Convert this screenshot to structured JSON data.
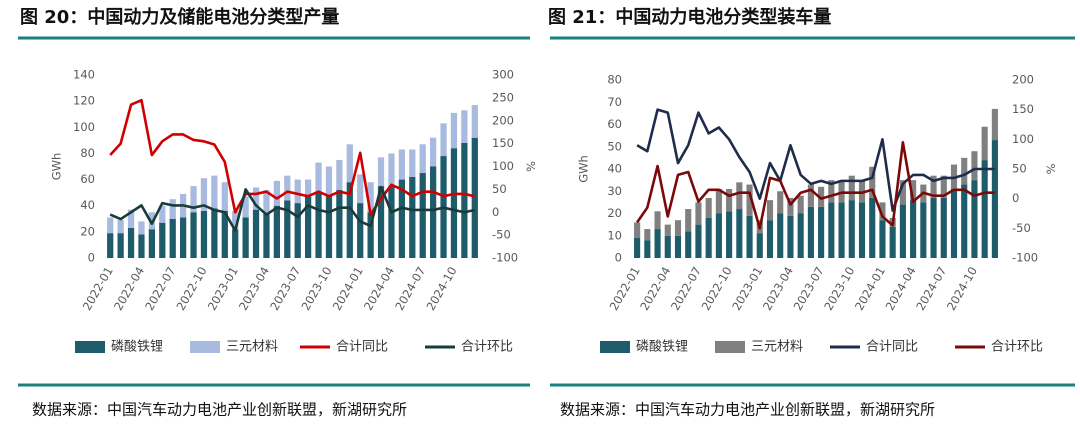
{
  "chart_data": [
    {
      "type": "bar",
      "title": "图 20：中国动力及储能电池分类型产量",
      "source": "数据来源：中国汽车动力电池产业创新联盟，新湖研究所",
      "y_label": "GWh",
      "y2_label": "%",
      "categories": [
        "2022-01",
        null,
        null,
        "2022-04",
        null,
        null,
        "2022-07",
        null,
        null,
        "2022-10",
        null,
        null,
        "2023-01",
        null,
        null,
        "2023-04",
        null,
        null,
        "2023-07",
        null,
        null,
        "2023-10",
        null,
        null,
        "2024-01",
        null,
        null,
        "2024-04",
        null,
        null,
        "2024-07",
        null,
        null,
        "2024-10",
        null,
        null
      ],
      "ylim": [
        0,
        140
      ],
      "yticks": [
        0,
        20,
        40,
        60,
        80,
        100,
        120,
        140
      ],
      "y2lim": [
        -100,
        300
      ],
      "y2ticks": [
        -100,
        -50,
        0,
        50,
        100,
        150,
        200,
        250,
        300
      ],
      "series": [
        {
          "name": "磷酸铁锂",
          "type": "bar",
          "color": "#1f5c6b",
          "values": [
            19,
            19,
            23,
            18,
            22,
            27,
            30,
            31,
            35,
            36,
            38,
            36,
            22,
            31,
            37,
            34,
            40,
            44,
            42,
            47,
            50,
            48,
            52,
            58,
            42,
            35,
            55,
            55,
            60,
            62,
            65,
            70,
            78,
            84,
            88,
            92
          ]
        },
        {
          "name": "三元材料",
          "type": "bar",
          "color": "#a8badf",
          "values": [
            12,
            10,
            14,
            10,
            13,
            13,
            15,
            18,
            20,
            25,
            25,
            22,
            14,
            16,
            17,
            18,
            19,
            19,
            18,
            13,
            23,
            22,
            23,
            29,
            22,
            23,
            22,
            25,
            23,
            21,
            22,
            22,
            25,
            27,
            25,
            25
          ]
        },
        {
          "name": "合计同比",
          "type": "line",
          "axis": "y2",
          "color": "#d00000",
          "values": [
            125,
            150,
            235,
            245,
            125,
            155,
            170,
            170,
            158,
            155,
            148,
            110,
            0,
            40,
            40,
            45,
            30,
            45,
            40,
            35,
            45,
            35,
            45,
            40,
            130,
            -5,
            30,
            60,
            50,
            35,
            45,
            45,
            35,
            40,
            40,
            35
          ]
        },
        {
          "name": "合计环比",
          "type": "line",
          "axis": "y2",
          "color": "#1b3b3b",
          "values": [
            -5,
            -15,
            0,
            15,
            -25,
            20,
            15,
            15,
            10,
            15,
            5,
            0,
            -40,
            50,
            15,
            -5,
            10,
            5,
            -10,
            15,
            5,
            0,
            10,
            10,
            -20,
            -30,
            55,
            0,
            10,
            5,
            5,
            5,
            10,
            5,
            0,
            5
          ]
        }
      ]
    },
    {
      "type": "bar",
      "title": "图 21：中国动力电池分类型装车量",
      "source": "数据来源：中国汽车动力电池产业创新联盟，新湖研究所",
      "y_label": "GWh",
      "y2_label": "%",
      "categories": [
        "2022-01",
        null,
        null,
        "2022-04",
        null,
        null,
        "2022-07",
        null,
        null,
        "2022-10",
        null,
        null,
        "2023-01",
        null,
        null,
        "2023-04",
        null,
        null,
        "2023-07",
        null,
        null,
        "2023-10",
        null,
        null,
        "2024-01",
        null,
        null,
        "2024-04",
        null,
        null,
        "2024-07",
        null,
        null,
        "2024-10",
        null,
        null
      ],
      "ylim": [
        0,
        80
      ],
      "yticks": [
        0,
        10,
        20,
        30,
        40,
        50,
        60,
        70,
        80
      ],
      "y2lim": [
        -100,
        200
      ],
      "y2ticks": [
        -100,
        -50,
        0,
        50,
        100,
        150,
        200
      ],
      "series": [
        {
          "name": "磷酸铁锂",
          "type": "bar",
          "color": "#1f5c6b",
          "values": [
            9,
            8,
            13,
            10,
            10,
            12,
            15,
            18,
            20,
            21,
            22,
            19,
            11,
            17,
            20,
            19,
            20,
            23,
            23,
            25,
            25,
            26,
            25,
            27,
            17,
            14,
            24,
            26,
            25,
            27,
            27,
            31,
            33,
            35,
            44,
            53
          ]
        },
        {
          "name": "三元材料",
          "type": "bar",
          "color": "#808080",
          "values": [
            7,
            5,
            8,
            5,
            7,
            10,
            10,
            9,
            11,
            10,
            12,
            14,
            6,
            9,
            10,
            8,
            8,
            10,
            9,
            10,
            10,
            11,
            10,
            14,
            8,
            4,
            11,
            9,
            8,
            10,
            10,
            11,
            12,
            13,
            15,
            14
          ]
        },
        {
          "name": "合计同比",
          "type": "line",
          "axis": "y2",
          "color": "#1f2c4c",
          "values": [
            90,
            80,
            150,
            145,
            60,
            90,
            145,
            110,
            120,
            100,
            70,
            45,
            0,
            60,
            30,
            90,
            40,
            25,
            30,
            25,
            30,
            30,
            30,
            35,
            100,
            -20,
            25,
            40,
            40,
            30,
            35,
            35,
            40,
            50,
            50,
            50
          ]
        },
        {
          "name": "合计环比",
          "type": "line",
          "axis": "y2",
          "color": "#7a0a0a",
          "values": [
            -40,
            -15,
            55,
            -30,
            40,
            45,
            -5,
            15,
            15,
            5,
            10,
            10,
            -50,
            35,
            30,
            -10,
            10,
            15,
            0,
            5,
            10,
            10,
            10,
            15,
            -30,
            -45,
            95,
            -5,
            10,
            5,
            5,
            15,
            15,
            5,
            10,
            10
          ]
        }
      ]
    }
  ]
}
